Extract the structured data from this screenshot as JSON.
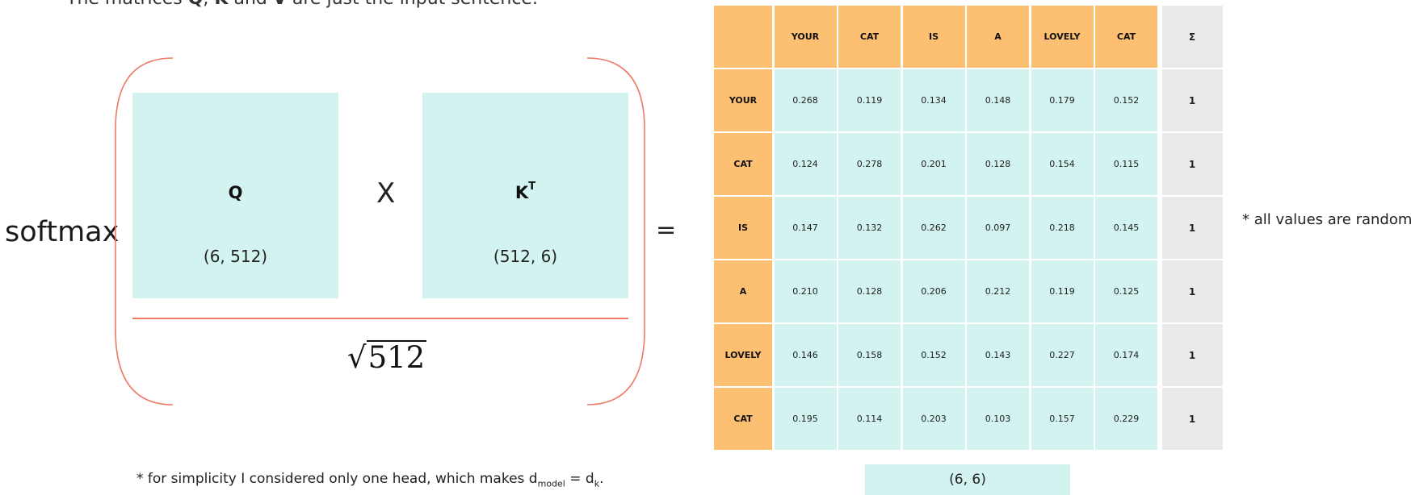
{
  "header": {
    "prefix": "The matrices ",
    "q": "Q",
    "sep1": ", ",
    "k": "K",
    "and": " and ",
    "v": "V",
    "suffix": " are just the input sentence."
  },
  "formula": {
    "softmax": "softmax",
    "q_label": "Q",
    "q_dim": "(6, 512)",
    "times": "X",
    "k_label": "K",
    "k_sup": "T",
    "k_dim": "(512, 6)",
    "radical": "√",
    "denominator": "512",
    "equals": "="
  },
  "colors": {
    "header_cells": "#fdbf72",
    "value_cells": "#d2f3f0",
    "sum_cells": "#ebe9ec",
    "bracket": "#ee7a66"
  },
  "table": {
    "sum_header": "Σ",
    "columns": [
      "YOUR",
      "CAT",
      "IS",
      "A",
      "LOVELY",
      "CAT"
    ],
    "rows": [
      {
        "label": "YOUR",
        "values": [
          "0.268",
          "0.119",
          "0.134",
          "0.148",
          "0.179",
          "0.152"
        ],
        "sum": "1"
      },
      {
        "label": "CAT",
        "values": [
          "0.124",
          "0.278",
          "0.201",
          "0.128",
          "0.154",
          "0.115"
        ],
        "sum": "1"
      },
      {
        "label": "IS",
        "values": [
          "0.147",
          "0.132",
          "0.262",
          "0.097",
          "0.218",
          "0.145"
        ],
        "sum": "1"
      },
      {
        "label": "A",
        "values": [
          "0.210",
          "0.128",
          "0.206",
          "0.212",
          "0.119",
          "0.125"
        ],
        "sum": "1"
      },
      {
        "label": "LOVELY",
        "values": [
          "0.146",
          "0.158",
          "0.152",
          "0.143",
          "0.227",
          "0.174"
        ],
        "sum": "1"
      },
      {
        "label": "CAT",
        "values": [
          "0.195",
          "0.114",
          "0.203",
          "0.103",
          "0.157",
          "0.229"
        ],
        "sum": "1"
      }
    ],
    "result_dim": "(6, 6)"
  },
  "notes": {
    "random": "* all values are random.",
    "head_prefix": "* for simplicity I considered only one head, which makes d",
    "head_sub1": "model",
    "head_mid": " = d",
    "head_sub2": "k",
    "head_end": "."
  }
}
